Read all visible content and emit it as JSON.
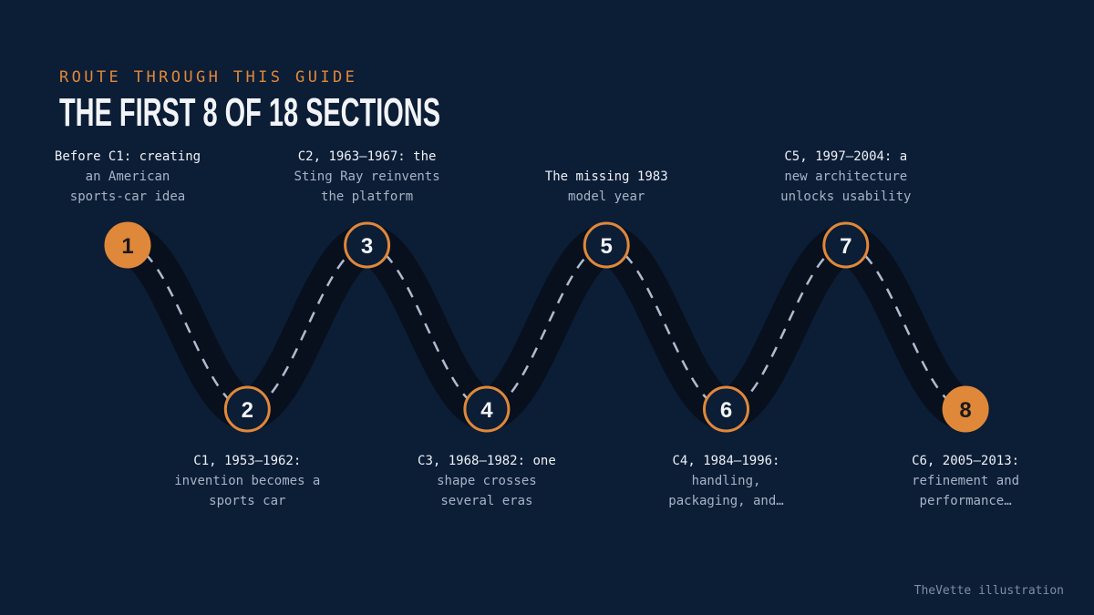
{
  "header": {
    "eyebrow": "ROUTE THROUGH THIS GUIDE",
    "title": "THE FIRST 8 OF 18 SECTIONS"
  },
  "nodes": [
    {
      "number": 1,
      "lines": [
        "Before C1: creating",
        "an American",
        "sports-car idea"
      ]
    },
    {
      "number": 2,
      "lines": [
        "C1, 1953–1962:",
        "invention becomes a",
        "sports car"
      ]
    },
    {
      "number": 3,
      "lines": [
        "C2, 1963–1967: the",
        "Sting Ray reinvents",
        "the platform"
      ]
    },
    {
      "number": 4,
      "lines": [
        "C3, 1968–1982: one",
        "shape crosses",
        "several eras"
      ]
    },
    {
      "number": 5,
      "lines": [
        "The missing 1983",
        "model year"
      ]
    },
    {
      "number": 6,
      "lines": [
        "C4, 1984–1996:",
        "handling,",
        "packaging, and…"
      ]
    },
    {
      "number": 7,
      "lines": [
        "C5, 1997–2004: a",
        "new architecture",
        "unlocks usability"
      ]
    },
    {
      "number": 8,
      "lines": [
        "C6, 2005–2013:",
        "refinement and",
        "performance…"
      ]
    }
  ],
  "footer": {
    "credit": "TheVette illustration"
  }
}
